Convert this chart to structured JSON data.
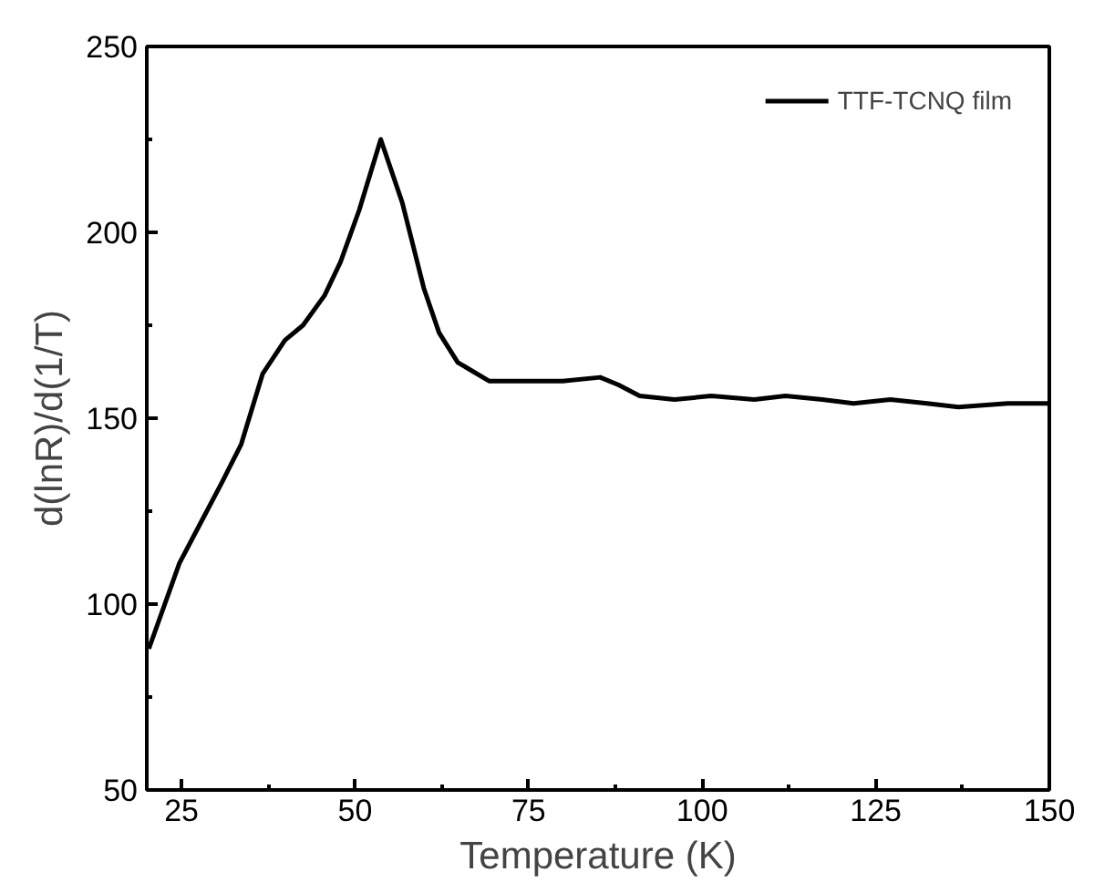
{
  "chart_data": {
    "type": "line",
    "xlabel": "Temperature (K)",
    "ylabel": "d(lnR)/d(1/T)",
    "x": [
      20.3,
      24.7,
      27.8,
      30.9,
      33.6,
      36.7,
      39.9,
      42.5,
      45.6,
      47.9,
      50.6,
      53.7,
      56.8,
      59.9,
      62.1,
      64.8,
      69.3,
      74.6,
      79.9,
      85.3,
      87.9,
      91.0,
      96.0,
      101.3,
      107.5,
      112.0,
      117.3,
      121.8,
      127.1,
      132.4,
      136.9,
      144.0,
      149.8
    ],
    "series": [
      {
        "name": "TTF-TCNQ film",
        "color": "#000000",
        "values": [
          88,
          111,
          122,
          133,
          143,
          162,
          171,
          175,
          183,
          192,
          206,
          225,
          208,
          185,
          173,
          165,
          160,
          160,
          160,
          161,
          159,
          156,
          155,
          156,
          155,
          156,
          155,
          154,
          155,
          154,
          153,
          154,
          154
        ]
      }
    ],
    "xlim": [
      20,
      150
    ],
    "ylim": [
      50,
      250
    ],
    "xticks": [
      25,
      50,
      75,
      100,
      125,
      150
    ],
    "yticks": [
      50,
      100,
      150,
      200,
      250
    ],
    "grid": false,
    "legend": "top right",
    "marker": "none",
    "line_style": "solid"
  }
}
